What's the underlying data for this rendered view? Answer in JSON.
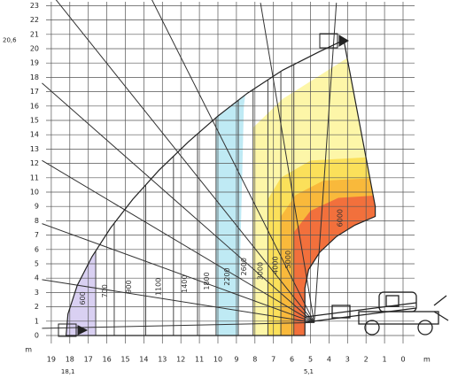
{
  "y_axis": {
    "labels": [
      0,
      1,
      2,
      3,
      4,
      5,
      6,
      7,
      8,
      9,
      10,
      11,
      12,
      13,
      14,
      15,
      16,
      17,
      18,
      19,
      20,
      21,
      22,
      23
    ],
    "unit": "m"
  },
  "x_axis": {
    "labels": [
      19,
      18,
      17,
      16,
      15,
      14,
      13,
      12,
      11,
      10,
      9,
      8,
      7,
      6,
      5,
      4,
      3,
      2,
      1,
      0
    ],
    "unit": "m"
  },
  "annotations": {
    "max_height": "20,6",
    "max_reach": "18,1",
    "pivot_offset": "5,1"
  },
  "load_zones": [
    "600",
    "700",
    "900",
    "1100",
    "1400",
    "1800",
    "2200",
    "2600",
    "3000",
    "4000",
    "5000",
    "6000"
  ]
}
